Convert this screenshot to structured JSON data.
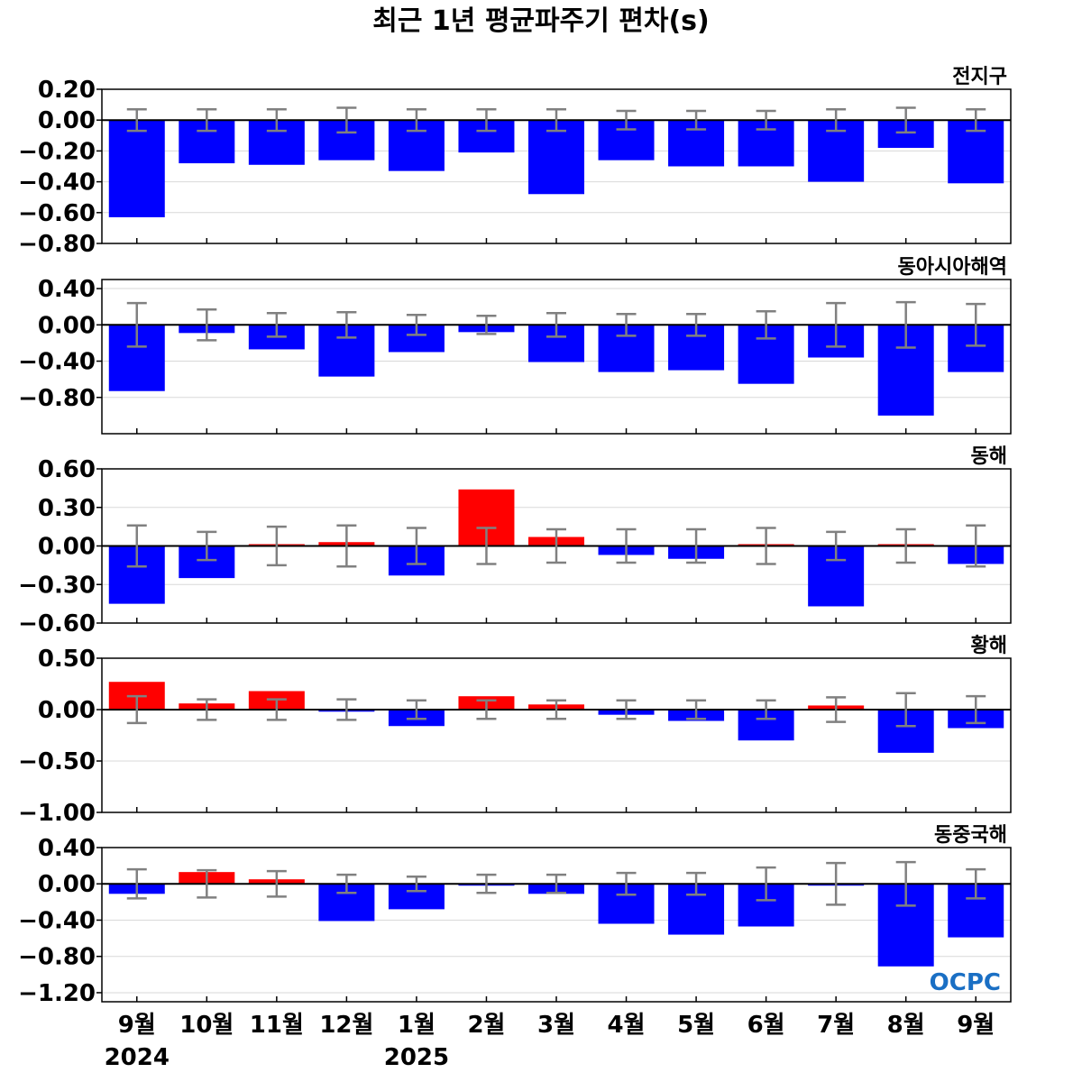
{
  "title": "최근 1년 평균파주기 편차(s)",
  "months": [
    "9월",
    "10월",
    "11월",
    "12월",
    "1월",
    "2월",
    "3월",
    "4월",
    "5월",
    "6월",
    "7월",
    "8월",
    "9월"
  ],
  "years": [
    {
      "label": "2024",
      "index": 0
    },
    {
      "label": "2025",
      "index": 4
    }
  ],
  "logo": "OCPC",
  "colors": {
    "positive": "#ff0000",
    "negative": "#0000ff",
    "error": "#808080",
    "zero_line": "#000000",
    "grid": "#d9d9d9"
  },
  "chart_data": [
    {
      "type": "bar",
      "region": "전지구",
      "ylim": [
        -0.8,
        0.2
      ],
      "yticks": [
        0.2,
        0.0,
        -0.2,
        -0.4,
        -0.6,
        -0.8
      ],
      "tick_labels": [
        "0.20",
        "0.00",
        "−0.20",
        "−0.40",
        "−0.60",
        "−0.80"
      ],
      "values": [
        -0.63,
        -0.28,
        -0.29,
        -0.26,
        -0.33,
        -0.21,
        -0.48,
        -0.26,
        -0.3,
        -0.3,
        -0.4,
        -0.18,
        -0.41
      ],
      "errors": [
        0.07,
        0.07,
        0.07,
        0.08,
        0.07,
        0.07,
        0.07,
        0.06,
        0.06,
        0.06,
        0.07,
        0.08,
        0.07
      ]
    },
    {
      "type": "bar",
      "region": "동아시아해역",
      "ylim": [
        -1.2,
        0.5
      ],
      "yticks": [
        0.4,
        0.0,
        -0.4,
        -0.8
      ],
      "tick_labels": [
        "0.40",
        "0.00",
        "−0.40",
        "−0.80"
      ],
      "values": [
        -0.73,
        -0.09,
        -0.27,
        -0.57,
        -0.3,
        -0.08,
        -0.41,
        -0.52,
        -0.5,
        -0.65,
        -0.36,
        -1.0,
        -0.52
      ],
      "errors": [
        0.24,
        0.17,
        0.13,
        0.14,
        0.11,
        0.1,
        0.13,
        0.12,
        0.12,
        0.15,
        0.24,
        0.25,
        0.23
      ]
    },
    {
      "type": "bar",
      "region": "동해",
      "ylim": [
        -0.6,
        0.6
      ],
      "yticks": [
        0.6,
        0.3,
        0.0,
        -0.3,
        -0.6
      ],
      "tick_labels": [
        "0.60",
        "0.30",
        "0.00",
        "−0.30",
        "−0.60"
      ],
      "values": [
        -0.45,
        -0.25,
        0.0,
        0.03,
        -0.23,
        0.44,
        0.07,
        -0.07,
        -0.1,
        0.0,
        -0.47,
        0.01,
        -0.14
      ],
      "errors": [
        0.16,
        0.11,
        0.15,
        0.16,
        0.14,
        0.14,
        0.13,
        0.13,
        0.13,
        0.14,
        0.11,
        0.13,
        0.16
      ]
    },
    {
      "type": "bar",
      "region": "황해",
      "ylim": [
        -1.0,
        0.5
      ],
      "yticks": [
        0.5,
        0.0,
        -0.5,
        -1.0
      ],
      "tick_labels": [
        "0.50",
        "0.00",
        "−0.50",
        "−1.00"
      ],
      "values": [
        0.27,
        0.06,
        0.18,
        -0.02,
        -0.16,
        0.13,
        0.05,
        -0.05,
        -0.11,
        -0.3,
        0.04,
        -0.42,
        -0.18
      ],
      "errors": [
        0.13,
        0.1,
        0.1,
        0.1,
        0.09,
        0.09,
        0.09,
        0.09,
        0.09,
        0.09,
        0.12,
        0.16,
        0.13
      ]
    },
    {
      "type": "bar",
      "region": "동중국해",
      "ylim": [
        -1.3,
        0.4
      ],
      "yticks": [
        0.4,
        0.0,
        -0.4,
        -0.8,
        -1.2
      ],
      "tick_labels": [
        "0.40",
        "0.00",
        "−0.40",
        "−0.80",
        "−1.20"
      ],
      "values": [
        -0.11,
        0.13,
        0.05,
        -0.41,
        -0.28,
        -0.02,
        -0.11,
        -0.44,
        -0.56,
        -0.47,
        -0.01,
        -0.91,
        -0.59
      ],
      "errors": [
        0.16,
        0.15,
        0.14,
        0.1,
        0.08,
        0.1,
        0.1,
        0.12,
        0.12,
        0.18,
        0.23,
        0.24,
        0.16
      ]
    }
  ]
}
